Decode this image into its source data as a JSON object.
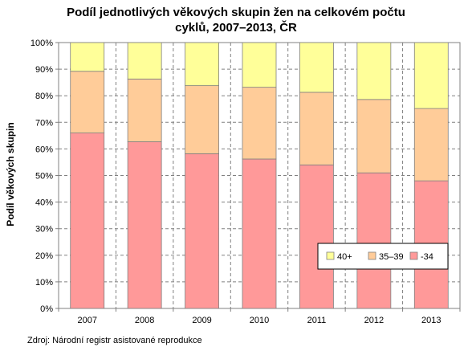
{
  "chart_data": {
    "type": "bar",
    "stacked": true,
    "title_line1": "Podíl jednotlivých věkových skupin žen na celkovém počtu",
    "title_line2": "cyklů, 2007–2013, ČR",
    "ylabel": "Podíl věkových skupin",
    "xlabel": "",
    "categories": [
      "2007",
      "2008",
      "2009",
      "2010",
      "2011",
      "2012",
      "2013"
    ],
    "ylim": [
      0,
      100
    ],
    "yticks": [
      "0%",
      "10%",
      "20%",
      "30%",
      "40%",
      "50%",
      "60%",
      "70%",
      "80%",
      "90%",
      "100%"
    ],
    "grid": true,
    "legend_position": "bottom-right",
    "series": [
      {
        "name": "-34",
        "color": "#ff9999",
        "values": [
          66,
          62.7,
          58.2,
          56.2,
          54,
          51,
          48
        ]
      },
      {
        "name": "35–39",
        "color": "#ffcc99",
        "values": [
          23.2,
          23.6,
          25.6,
          27,
          27.3,
          27.6,
          27.2
        ]
      },
      {
        "name": "40+",
        "color": "#ffff99",
        "values": [
          10.8,
          13.7,
          16.2,
          16.8,
          18.7,
          21.4,
          24.8
        ]
      }
    ],
    "legend_order": [
      "40+",
      "35–39",
      "-34"
    ],
    "source": "Zdroj:  Národní  registr  asistované  reprodukce"
  }
}
